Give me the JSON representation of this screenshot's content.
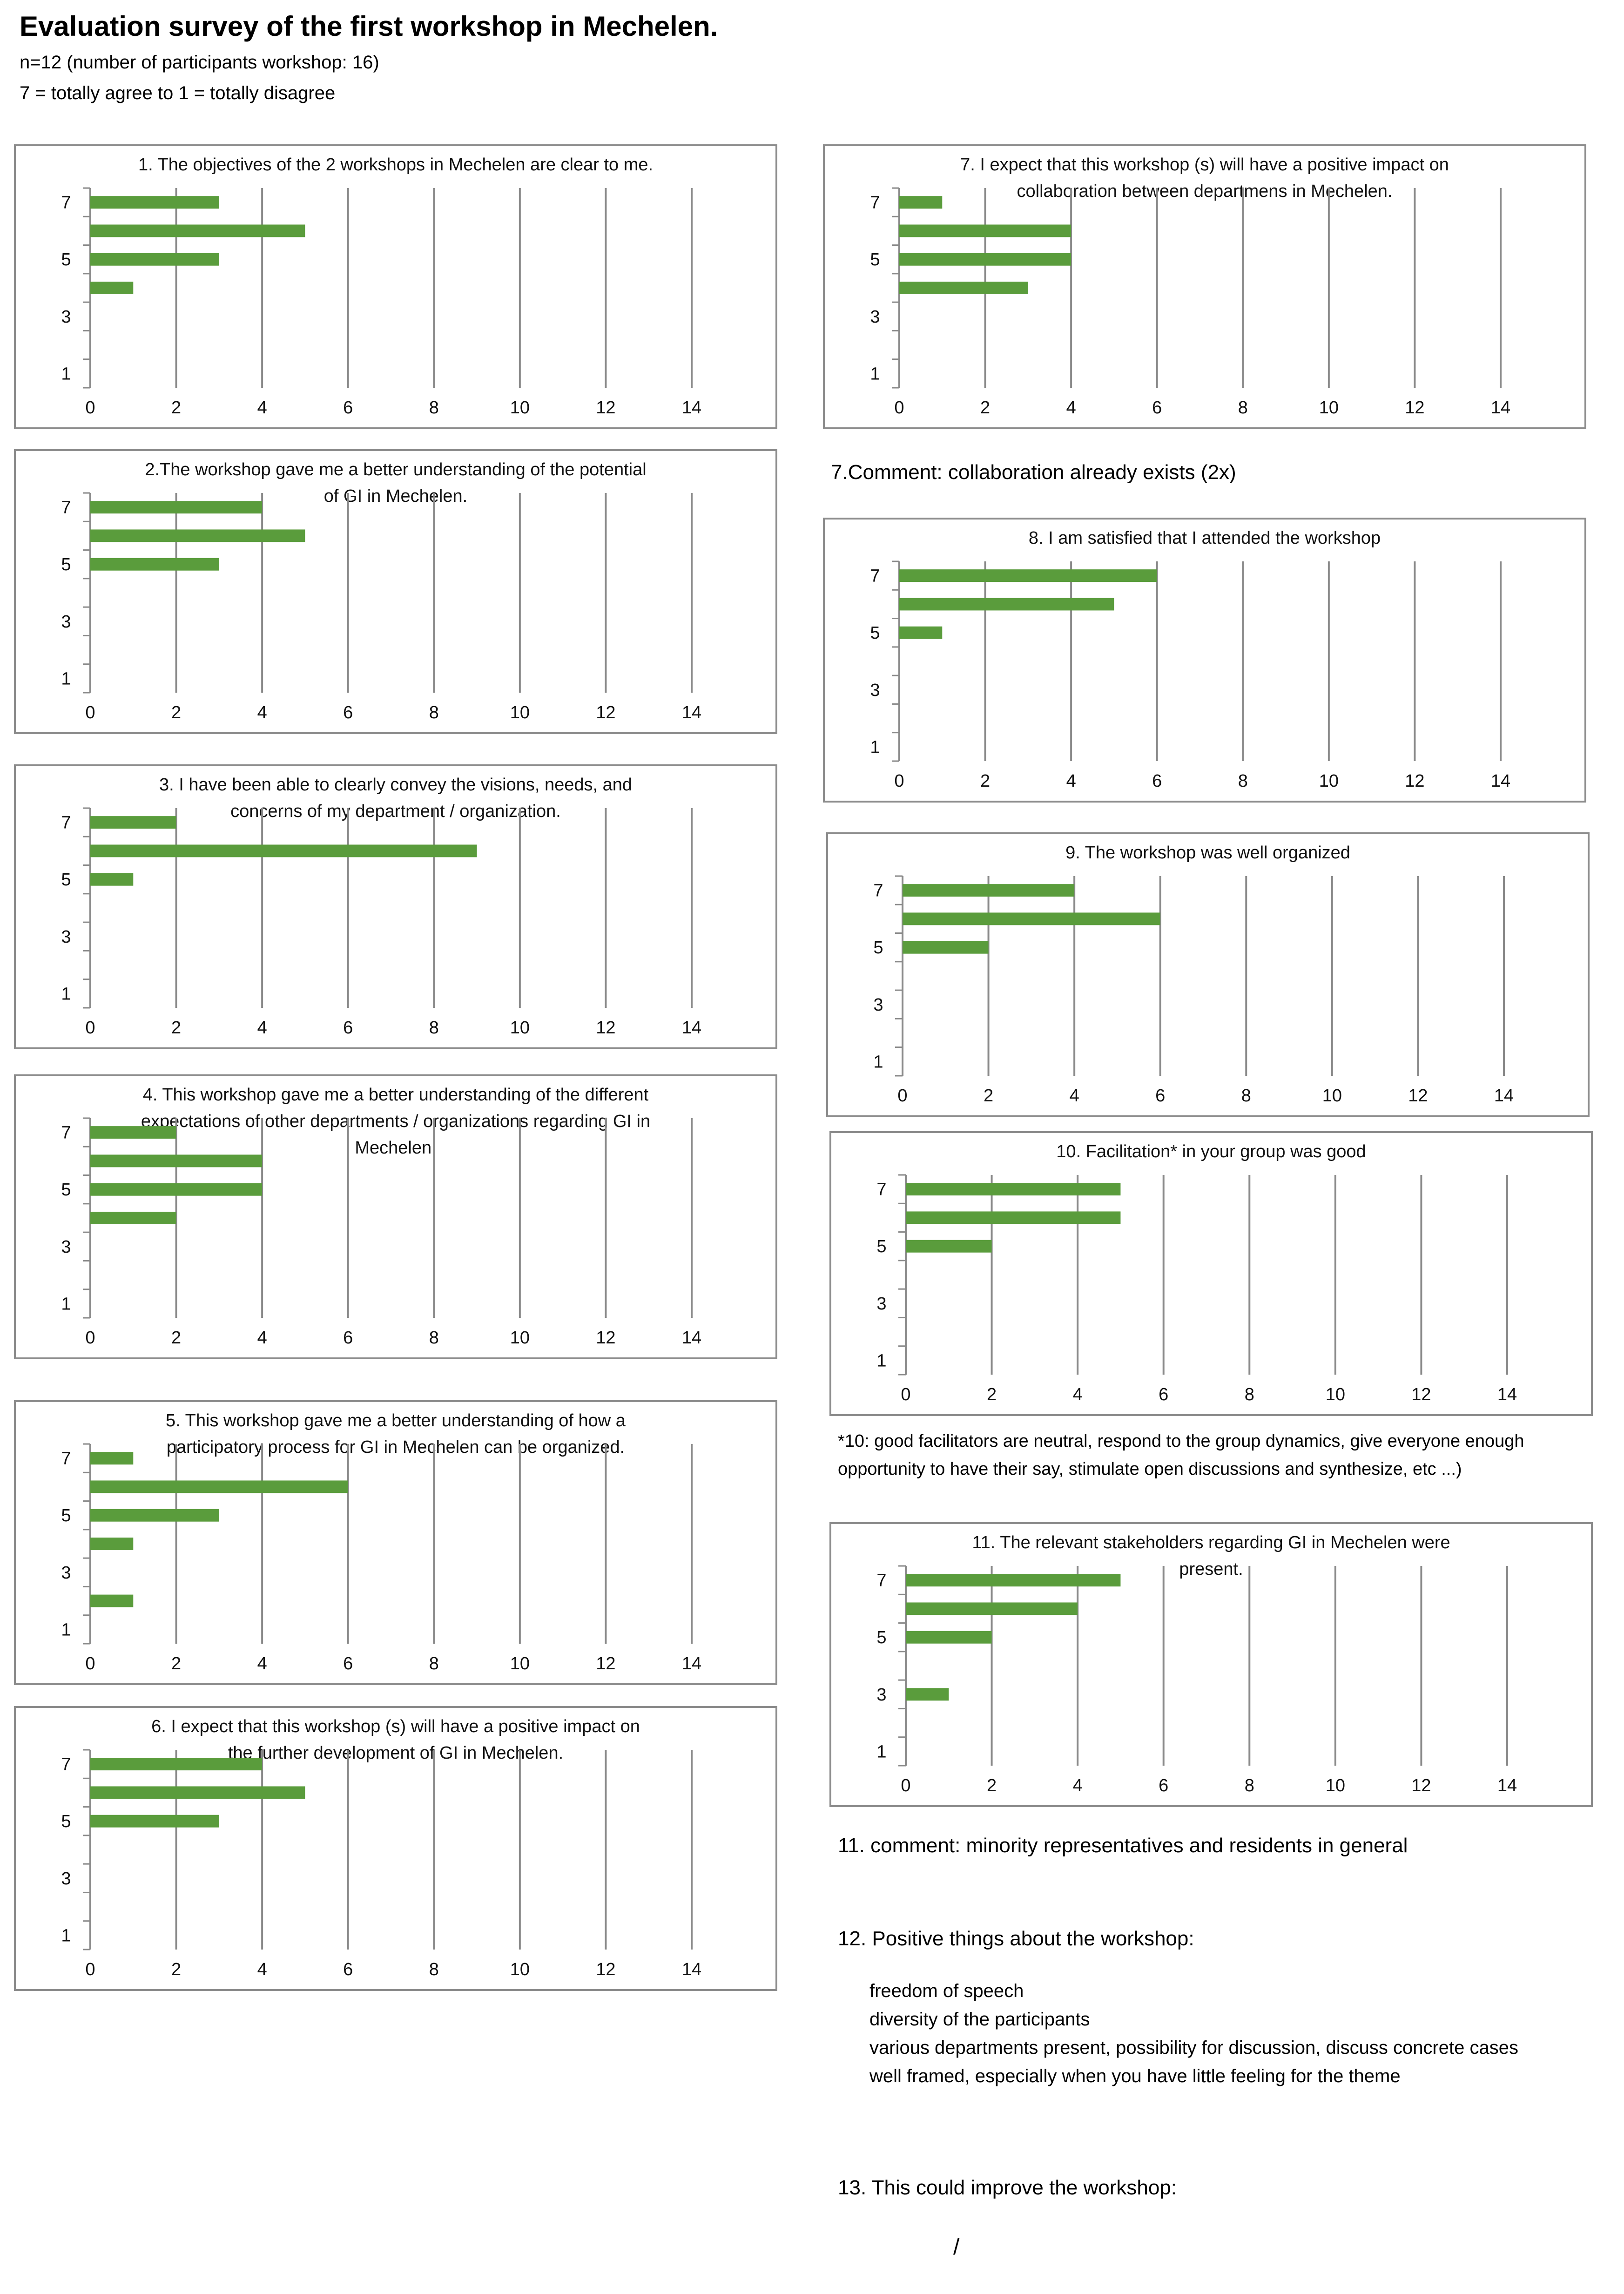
{
  "header": {
    "title": "Evaluation survey of the first workshop in Mechelen.",
    "subtitle": "n=12 (number of participants workshop: 16)",
    "scale": "7 = totally agree  to 1 = totally disagree"
  },
  "axis_defaults": {
    "xticks": [
      0,
      2,
      4,
      6,
      8,
      10,
      12,
      14
    ],
    "yticks": [
      1,
      3,
      5,
      7
    ]
  },
  "chart_data": [
    {
      "id": "q1",
      "type": "bar",
      "orientation": "horizontal",
      "title_lines": [
        "1. The objectives  of the 2 workshops  in Mechelen are clear to me."
      ],
      "categories": [
        7,
        6,
        5,
        4,
        3,
        2,
        1
      ],
      "values": [
        3,
        5,
        3,
        1,
        0,
        0,
        0
      ],
      "xlim": [
        0,
        14
      ],
      "color": "#5a9c3c"
    },
    {
      "id": "q2",
      "type": "bar",
      "orientation": "horizontal",
      "title_lines": [
        "2.The workshop gave me a better  understanding  of the potential",
        "of GI in Mechelen."
      ],
      "categories": [
        7,
        6,
        5,
        4,
        3,
        2,
        1
      ],
      "values": [
        4,
        5,
        3,
        0,
        0,
        0,
        0
      ],
      "xlim": [
        0,
        14
      ],
      "color": "#5a9c3c"
    },
    {
      "id": "q3",
      "type": "bar",
      "orientation": "horizontal",
      "title_lines": [
        "3. I have been able to clearly convey the visions,  needs, and",
        "concerns  of my department  / organization."
      ],
      "categories": [
        7,
        6,
        5,
        4,
        3,
        2,
        1
      ],
      "values": [
        2,
        9,
        1,
        0,
        0,
        0,
        0
      ],
      "xlim": [
        0,
        14
      ],
      "color": "#5a9c3c"
    },
    {
      "id": "q4",
      "type": "bar",
      "orientation": "horizontal",
      "title_lines": [
        "4. This workshop gave me a better understanding  of the different",
        "expectations  of other departments  / organizations  regarding  GI in",
        "Mechelen."
      ],
      "categories": [
        7,
        6,
        5,
        4,
        3,
        2,
        1
      ],
      "values": [
        2,
        4,
        4,
        2,
        0,
        0,
        0
      ],
      "xlim": [
        0,
        14
      ],
      "color": "#5a9c3c"
    },
    {
      "id": "q5",
      "type": "bar",
      "orientation": "horizontal",
      "title_lines": [
        "5. This workshop gave me a better understanding  of how a",
        "participatory  process for GI in Mechelen can be organized."
      ],
      "categories": [
        7,
        6,
        5,
        4,
        3,
        2,
        1
      ],
      "values": [
        1,
        6,
        3,
        1,
        0,
        1,
        0
      ],
      "xlim": [
        0,
        14
      ],
      "color": "#5a9c3c"
    },
    {
      "id": "q6",
      "type": "bar",
      "orientation": "horizontal",
      "title_lines": [
        "6. I expect that this workshop (s) will have a positive impact on",
        "the further  development  of GI in Mechelen."
      ],
      "categories": [
        7,
        6,
        5,
        4,
        3,
        2,
        1
      ],
      "values": [
        4,
        5,
        3,
        0,
        0,
        0,
        0
      ],
      "xlim": [
        0,
        14
      ],
      "color": "#5a9c3c"
    },
    {
      "id": "q7",
      "type": "bar",
      "orientation": "horizontal",
      "title_lines": [
        "7. I expect that this workshop (s) will have a positive impact on",
        "collaboration  between  departmens  in Mechelen."
      ],
      "categories": [
        7,
        6,
        5,
        4,
        3,
        2,
        1
      ],
      "values": [
        1,
        4,
        4,
        3,
        0,
        0,
        0
      ],
      "xlim": [
        0,
        14
      ],
      "color": "#5a9c3c"
    },
    {
      "id": "q8",
      "type": "bar",
      "orientation": "horizontal",
      "title_lines": [
        "8. I am satisfied that I attended the workshop"
      ],
      "categories": [
        7,
        6,
        5,
        4,
        3,
        2,
        1
      ],
      "values": [
        6,
        5,
        1,
        0,
        0,
        0,
        0
      ],
      "xlim": [
        0,
        14
      ],
      "color": "#5a9c3c"
    },
    {
      "id": "q9",
      "type": "bar",
      "orientation": "horizontal",
      "title_lines": [
        "9. The workshop  was well organized"
      ],
      "categories": [
        7,
        6,
        5,
        4,
        3,
        2,
        1
      ],
      "values": [
        4,
        6,
        2,
        0,
        0,
        0,
        0
      ],
      "xlim": [
        0,
        14
      ],
      "color": "#5a9c3c"
    },
    {
      "id": "q10",
      "type": "bar",
      "orientation": "horizontal",
      "title_lines": [
        "10. Facilitation*  in your group was good"
      ],
      "categories": [
        7,
        6,
        5,
        4,
        3,
        2,
        1
      ],
      "values": [
        5,
        5,
        2,
        0,
        0,
        0,
        0
      ],
      "xlim": [
        0,
        14
      ],
      "color": "#5a9c3c"
    },
    {
      "id": "q11",
      "type": "bar",
      "orientation": "horizontal",
      "title_lines": [
        "11. The relevant stakeholders regarding  GI in Mechelen were",
        "present."
      ],
      "categories": [
        7,
        6,
        5,
        4,
        3,
        2,
        1
      ],
      "values": [
        5,
        4,
        2,
        0,
        1,
        0,
        0
      ],
      "xlim": [
        0,
        14
      ],
      "color": "#5a9c3c"
    }
  ],
  "notes": {
    "q7_comment": "7.Comment: collaboration already exists (2x)",
    "q10_footnote_1": "*10: good facilitators are neutral, respond to the group dynamics, give everyone enough",
    "q10_footnote_2": "opportunity to have their say, stimulate open discussions and synthesize, etc ...)",
    "q11_comment": "11. comment: minority representatives and residents in general",
    "q12_heading": "12. Positive things about the workshop:",
    "q12_items": [
      "freedom of speech",
      "diversity of the participants",
      "various departments present, possibility for discussion, discuss concrete cases",
      "well framed, especially when you have little feeling for the theme"
    ],
    "q13_heading": "13. This could improve the workshop:",
    "q13_answer": "/"
  }
}
